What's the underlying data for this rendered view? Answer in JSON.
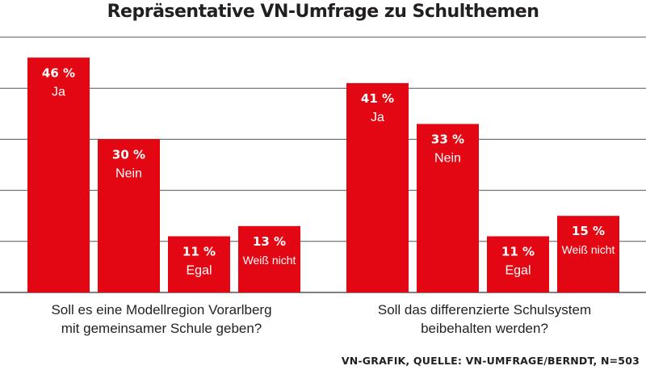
{
  "colors": {
    "bar": "#e30613",
    "grid": "#555555",
    "text": "#231f20"
  },
  "source": "VN-GRAFIK, QUELLE: VN-UMFRAGE/BERNDT, N=503",
  "chart_data": {
    "type": "bar",
    "title": "Repräsentative VN-Umfrage zu Schulthemen",
    "unit": "%",
    "ylim": [
      0,
      50
    ],
    "grid": true,
    "groups": [
      {
        "question_line1": "Soll es eine Modellregion Vorarlberg",
        "question_line2": "mit gemeinsamer Schule geben?",
        "bars": [
          {
            "label": "Ja",
            "value": 46,
            "value_text": "46 %"
          },
          {
            "label": "Nein",
            "value": 30,
            "value_text": "30 %"
          },
          {
            "label": "Egal",
            "value": 11,
            "value_text": "11 %"
          },
          {
            "label": "Weiß nicht",
            "value": 13,
            "value_text": "13 %"
          }
        ]
      },
      {
        "question_line1": "Soll das differenzierte Schulsystem",
        "question_line2": "beibehalten werden?",
        "bars": [
          {
            "label": "Ja",
            "value": 41,
            "value_text": "41 %"
          },
          {
            "label": "Nein",
            "value": 33,
            "value_text": "33 %"
          },
          {
            "label": "Egal",
            "value": 11,
            "value_text": "11 %"
          },
          {
            "label": "Weiß nicht",
            "value": 15,
            "value_text": "15 %"
          }
        ]
      }
    ]
  }
}
